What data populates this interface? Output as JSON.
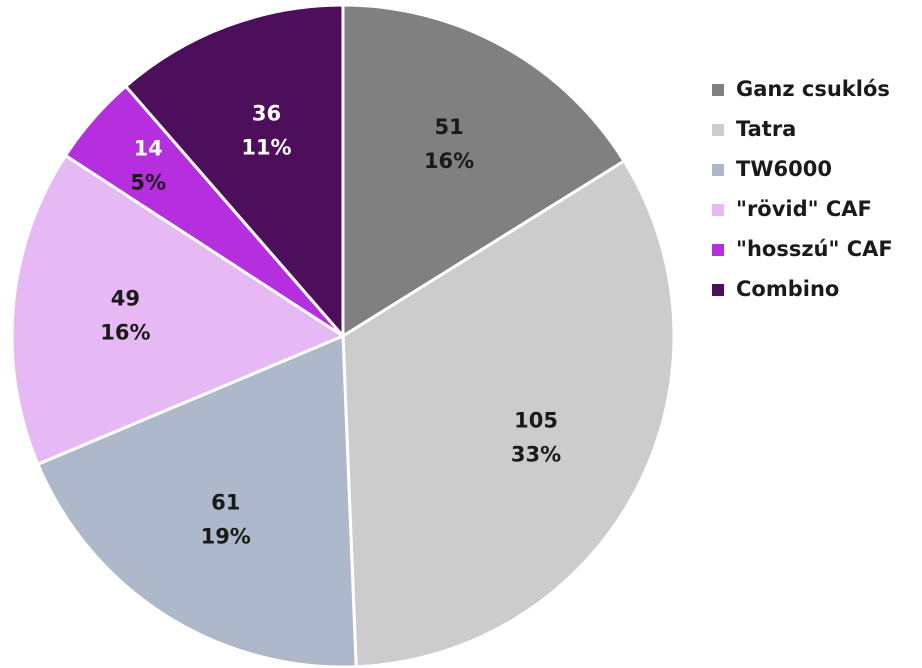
{
  "chart_data": {
    "type": "pie",
    "categories": [
      "Ganz csuklós",
      "Tatra",
      "TW6000",
      "\"rövid\" CAF",
      "\"hosszú\" CAF",
      "Combino"
    ],
    "values": [
      51,
      105,
      61,
      49,
      14,
      36
    ],
    "percent_labels": [
      "16%",
      "33%",
      "19%",
      "16%",
      "5%",
      "11%"
    ],
    "colors": [
      "#808080",
      "#cccccc",
      "#adb9ca",
      "#e6b8f4",
      "#b52fde",
      "#4d0f5c"
    ],
    "legend": "right"
  }
}
